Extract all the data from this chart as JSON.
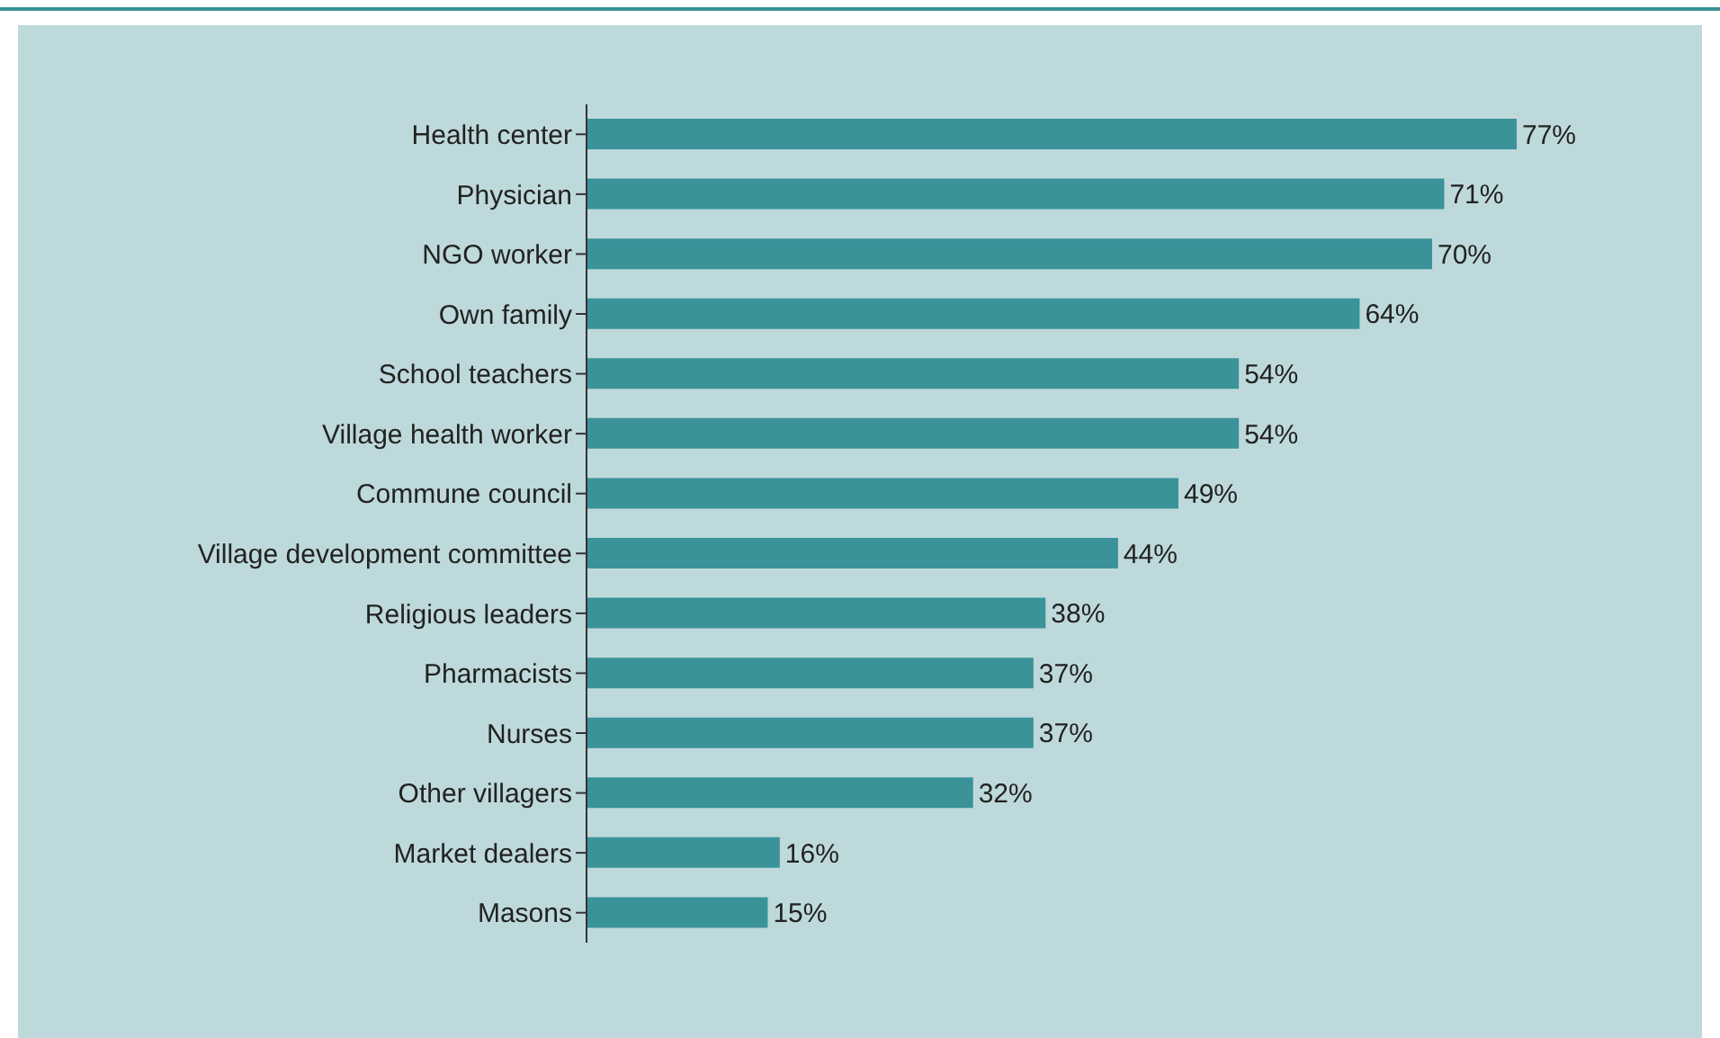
{
  "chart_data": {
    "type": "bar",
    "orientation": "horizontal",
    "categories": [
      "Health center",
      "Physician",
      "NGO worker",
      "Own family",
      "School teachers",
      "Village health worker",
      "Commune council",
      "Village development committee",
      "Religious leaders",
      "Pharmacists",
      "Nurses",
      "Other villagers",
      "Market dealers",
      "Masons"
    ],
    "values": [
      77,
      71,
      70,
      64,
      54,
      54,
      49,
      44,
      38,
      37,
      37,
      32,
      16,
      15
    ],
    "value_labels": [
      "77%",
      "71%",
      "70%",
      "64%",
      "54%",
      "54%",
      "49%",
      "44%",
      "38%",
      "37%",
      "37%",
      "32%",
      "16%",
      "15%"
    ],
    "color": "#3a9399",
    "tick_labels": "y"
  }
}
